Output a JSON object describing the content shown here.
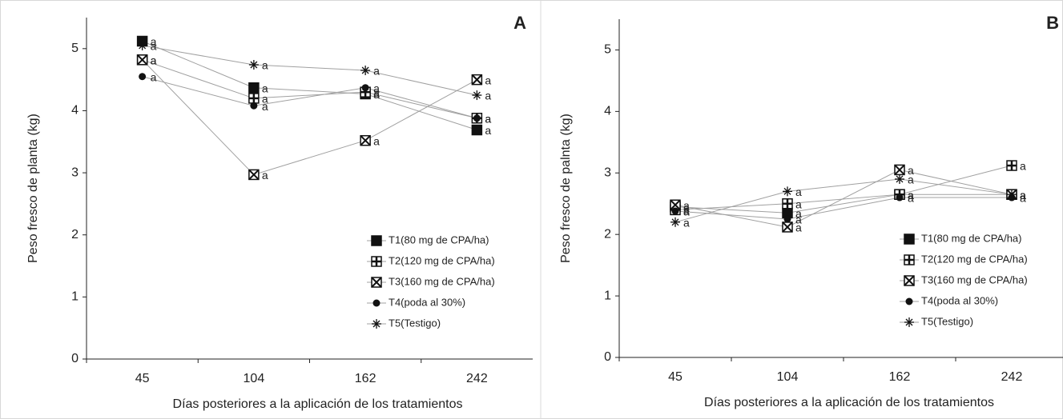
{
  "chart_data": [
    {
      "type": "line",
      "panel": "A",
      "ylabel": "Peso fresco de planta (kg)",
      "xlabel": "Días posteriores  a la aplicación  de los tratamientos",
      "categories": [
        "45",
        "104",
        "162",
        "242"
      ],
      "ylim": [
        0,
        5.5
      ],
      "yticks": [
        0,
        1,
        2,
        3,
        4,
        5
      ],
      "legend": "lower right",
      "line_color": "#a0a0a0",
      "series": [
        {
          "name": "T1(80 mg de CPA/ha)",
          "color": "#111111",
          "marker": "square",
          "values": [
            5.12,
            4.37,
            4.27,
            3.69
          ],
          "letters": [
            "a",
            "a",
            "a",
            "a"
          ]
        },
        {
          "name": "T2(120 mg de CPA/ha)",
          "color": "#111111",
          "marker": "square-plus",
          "values": [
            4.82,
            4.2,
            4.3,
            3.88
          ],
          "letters": [
            "a",
            "a",
            "a",
            "a"
          ]
        },
        {
          "name": "T3(160 mg de CPA/ha)",
          "color": "#111111",
          "marker": "square-x",
          "values": [
            4.82,
            2.97,
            3.52,
            4.5
          ],
          "letters": [
            "a",
            "a",
            "a",
            "a"
          ]
        },
        {
          "name": "T4(poda al 30%)",
          "color": "#111111",
          "marker": "circle",
          "values": [
            4.55,
            4.08,
            4.37,
            3.88
          ],
          "letters": [
            "a",
            "a",
            "a",
            "a"
          ]
        },
        {
          "name": "T5(Testigo)",
          "color": "#111111",
          "marker": "asterisk",
          "values": [
            5.05,
            4.74,
            4.65,
            4.25
          ],
          "letters": [
            "a",
            "a",
            "a",
            "a"
          ]
        }
      ]
    },
    {
      "type": "line",
      "panel": "B",
      "ylabel": "Peso fresco de palnta (kg)",
      "xlabel": "Días posteriores  a la aplicación  de los tratamientos",
      "categories": [
        "45",
        "104",
        "162",
        "242"
      ],
      "ylim": [
        0,
        5.5
      ],
      "yticks": [
        0,
        1,
        2,
        3,
        4,
        5
      ],
      "legend": "lower right",
      "line_color": "#a0a0a0",
      "series": [
        {
          "name": "T1(80 mg de CPA/ha)",
          "color": "#111111",
          "marker": "square",
          "values": [
            2.45,
            2.35,
            2.65,
            2.65
          ],
          "letters": [
            "a",
            "a",
            "a",
            "a"
          ]
        },
        {
          "name": "T2(120 mg de CPA/ha)",
          "color": "#111111",
          "marker": "square-plus",
          "values": [
            2.4,
            2.5,
            2.65,
            3.12
          ],
          "letters": [
            "a",
            "a",
            "a",
            "a"
          ]
        },
        {
          "name": "T3(160 mg de CPA/ha)",
          "color": "#111111",
          "marker": "square-x",
          "values": [
            2.48,
            2.12,
            3.05,
            2.65
          ],
          "letters": [
            "a",
            "a",
            "a",
            "a"
          ]
        },
        {
          "name": "T4(poda al 30%)",
          "color": "#111111",
          "marker": "circle",
          "values": [
            2.38,
            2.25,
            2.6,
            2.6
          ],
          "letters": [
            "a",
            "a",
            "a",
            "a"
          ]
        },
        {
          "name": "T5(Testigo)",
          "color": "#111111",
          "marker": "asterisk",
          "values": [
            2.2,
            2.7,
            2.9,
            2.65
          ],
          "letters": [
            "a",
            "a",
            "a",
            "a"
          ]
        }
      ]
    }
  ]
}
